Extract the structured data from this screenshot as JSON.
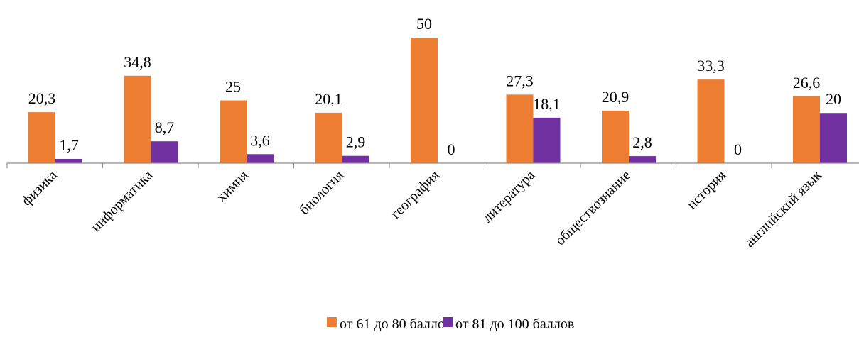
{
  "chart_data": {
    "type": "bar",
    "categories": [
      "физика",
      "информатика",
      "химия",
      "биология",
      "география",
      "литература",
      "обществознание",
      "история",
      "английский язык"
    ],
    "series": [
      {
        "name": "от 61 до 80 балло",
        "color": "#ED7D31",
        "values": [
          20.3,
          34.8,
          25,
          20.1,
          50,
          27.3,
          20.9,
          33.3,
          26.6
        ]
      },
      {
        "name": "от 81 до 100 баллов",
        "color": "#7030A0",
        "values": [
          1.7,
          8.7,
          3.6,
          2.9,
          0,
          18.1,
          2.8,
          0,
          20
        ]
      }
    ],
    "data_labels": [
      [
        "20,3",
        "34,8",
        "25",
        "20,1",
        "50",
        "27,3",
        "20,9",
        "33,3",
        "26,6"
      ],
      [
        "1,7",
        "8,7",
        "3,6",
        "2,9",
        "0",
        "18,1",
        "2,8",
        "0",
        "20"
      ]
    ],
    "ylim": [
      0,
      50
    ],
    "grid": false,
    "legend_position": "bottom"
  }
}
